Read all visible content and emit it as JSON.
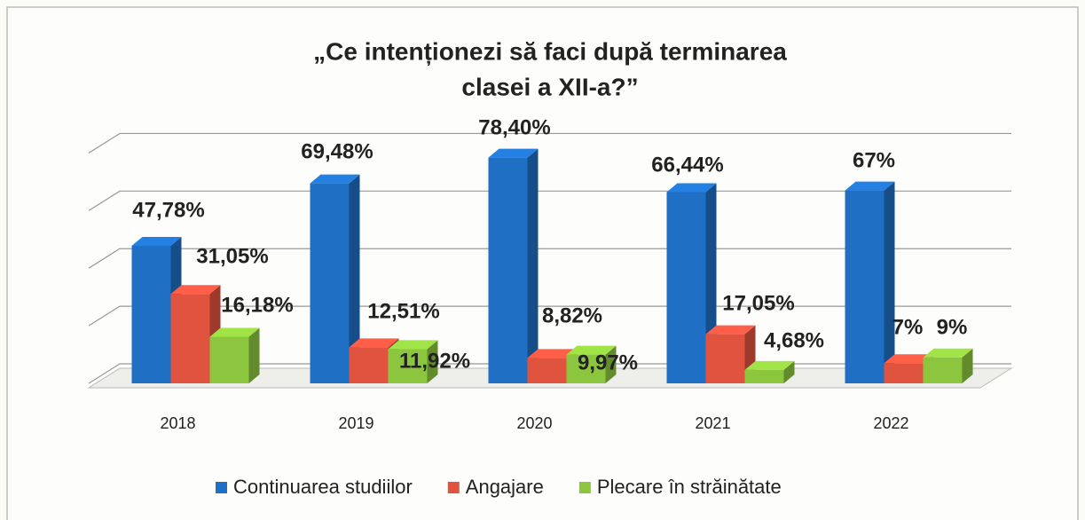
{
  "chart_data": {
    "type": "bar3d",
    "title": "„Ce intenționezi să faci după terminarea clasei a XII-a?”",
    "categories": [
      "2018",
      "2019",
      "2020",
      "2021",
      "2022"
    ],
    "series": [
      {
        "name": "Continuarea studiilor",
        "color": "#1f6fc5",
        "values": [
          47.78,
          69.48,
          78.4,
          66.44,
          67
        ],
        "value_labels": [
          "47,78%",
          "69,48%",
          "78,40%",
          "66,44%",
          "67%"
        ]
      },
      {
        "name": "Angajare",
        "color": "#e0533f",
        "values": [
          31.05,
          12.51,
          8.82,
          17.05,
          7
        ],
        "value_labels": [
          "31,05%",
          "12,51%",
          "8,82%",
          "17,05%",
          "7%"
        ]
      },
      {
        "name": "Plecare în străinătate",
        "color": "#8cc63f",
        "values": [
          16.18,
          11.92,
          9.97,
          4.68,
          9
        ],
        "value_labels": [
          "16,18%",
          "11,92%",
          "9,97%",
          "4,68%",
          "9%"
        ]
      }
    ],
    "ylim": [
      0,
      90
    ],
    "yticks": [
      0,
      20,
      40,
      60,
      80
    ],
    "grid": true
  }
}
